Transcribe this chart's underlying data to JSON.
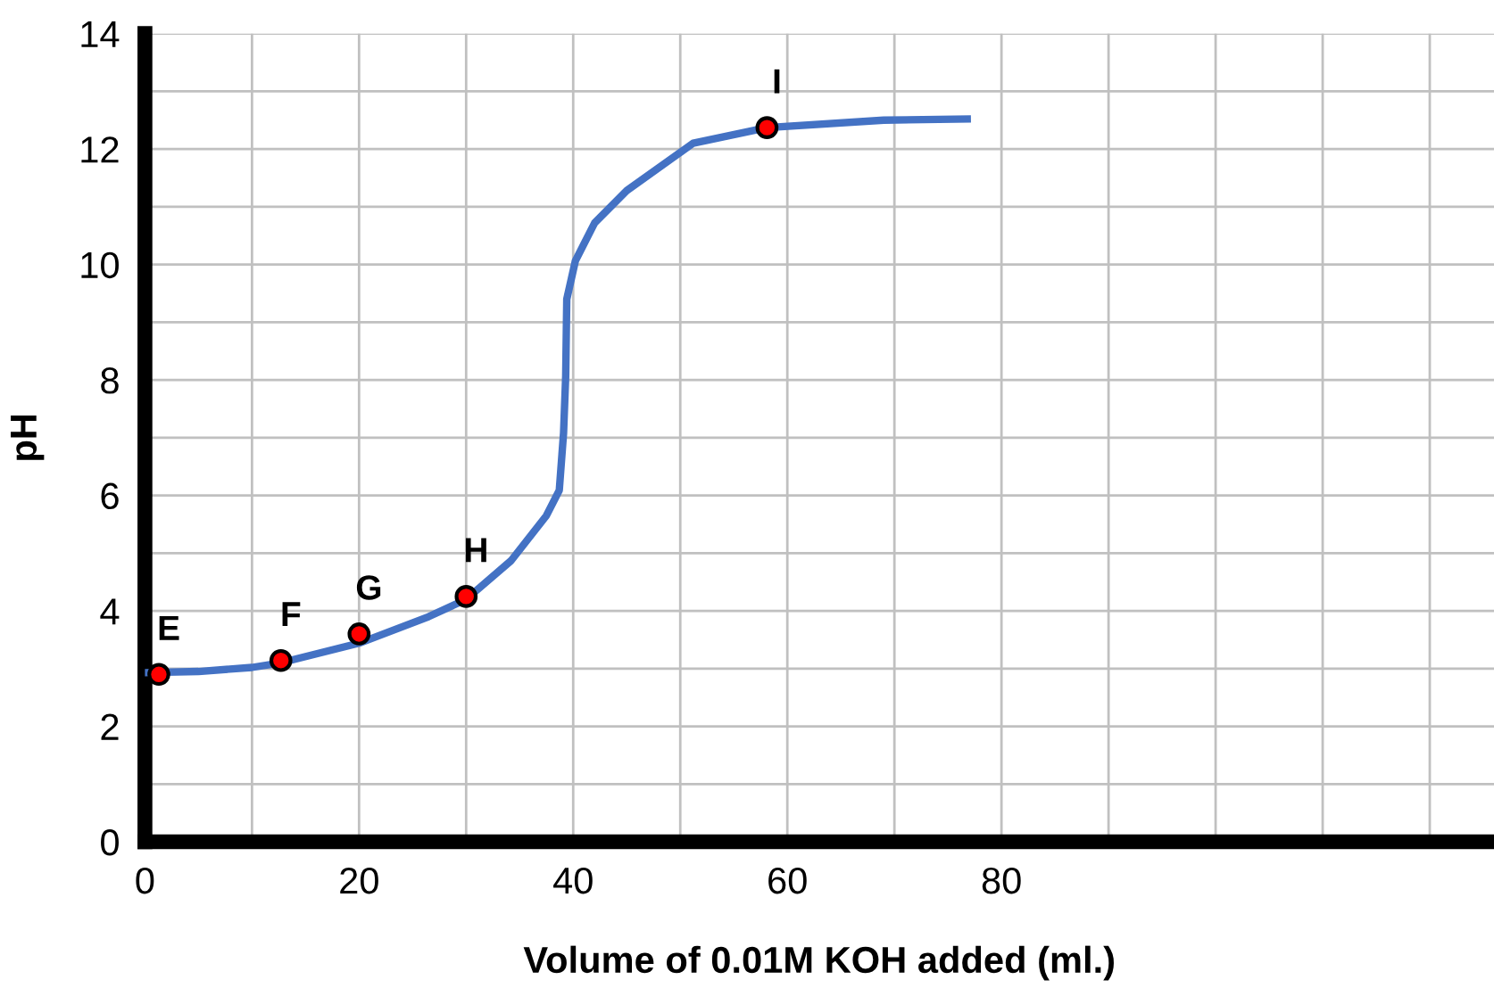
{
  "chart_data": {
    "type": "line",
    "xlabel": "Volume of 0.01M KOH added (ml.)",
    "ylabel": "pH",
    "xlim": [
      0,
      126
    ],
    "ylim": [
      0,
      14
    ],
    "xticks": [
      0,
      {
        "value": 10,
        "label": null
      },
      20,
      {
        "value": 30,
        "label": null
      },
      40,
      {
        "value": 50,
        "label": null
      },
      60,
      {
        "value": 70,
        "label": null
      },
      80,
      {
        "value": 90,
        "label": null
      },
      {
        "value": 100,
        "label": null
      },
      {
        "value": 110,
        "label": null
      },
      {
        "value": 120,
        "label": null
      }
    ],
    "yticks": [
      0,
      {
        "value": 1,
        "label": null
      },
      2,
      {
        "value": 3,
        "label": null
      },
      4,
      {
        "value": 5,
        "label": null
      },
      6,
      {
        "value": 7,
        "label": null
      },
      8,
      {
        "value": 9,
        "label": null
      },
      10,
      {
        "value": 11,
        "label": null
      },
      12,
      {
        "value": 13,
        "label": null
      },
      14
    ],
    "grid": true,
    "legend": false,
    "series": [
      {
        "color": "#4472c4",
        "marker": "none",
        "line_style": "solid",
        "x": [
          0,
          5,
          10,
          12.7,
          20,
          26.5,
          30,
          34.2,
          37.5,
          38.7,
          39.1,
          39.3,
          39.4,
          40.2,
          42,
          45,
          51.2,
          58.1,
          69,
          76.8
        ],
        "values": [
          2.93,
          2.95,
          3.02,
          3.1,
          3.44,
          3.9,
          4.2,
          4.87,
          5.65,
          6.09,
          7.08,
          8.07,
          9.4,
          10.06,
          10.72,
          11.28,
          12.1,
          12.37,
          12.5,
          12.52
        ]
      },
      {
        "type": "scatter",
        "color": "#ff0000",
        "marker": "circle",
        "x": [
          1.3,
          12.7,
          20.0,
          30.0,
          58.1
        ],
        "values": [
          2.9,
          3.14,
          3.6,
          4.25,
          12.37
        ]
      }
    ],
    "annotations": [
      {
        "text": "E",
        "x": 1.3,
        "y": 2.9
      },
      {
        "text": "F",
        "x": 12.7,
        "y": 3.14
      },
      {
        "text": "G",
        "x": 20.0,
        "y": 3.6
      },
      {
        "text": "H",
        "x": 30.0,
        "y": 4.25
      },
      {
        "text": "I",
        "x": 58.1,
        "y": 12.37
      }
    ]
  }
}
